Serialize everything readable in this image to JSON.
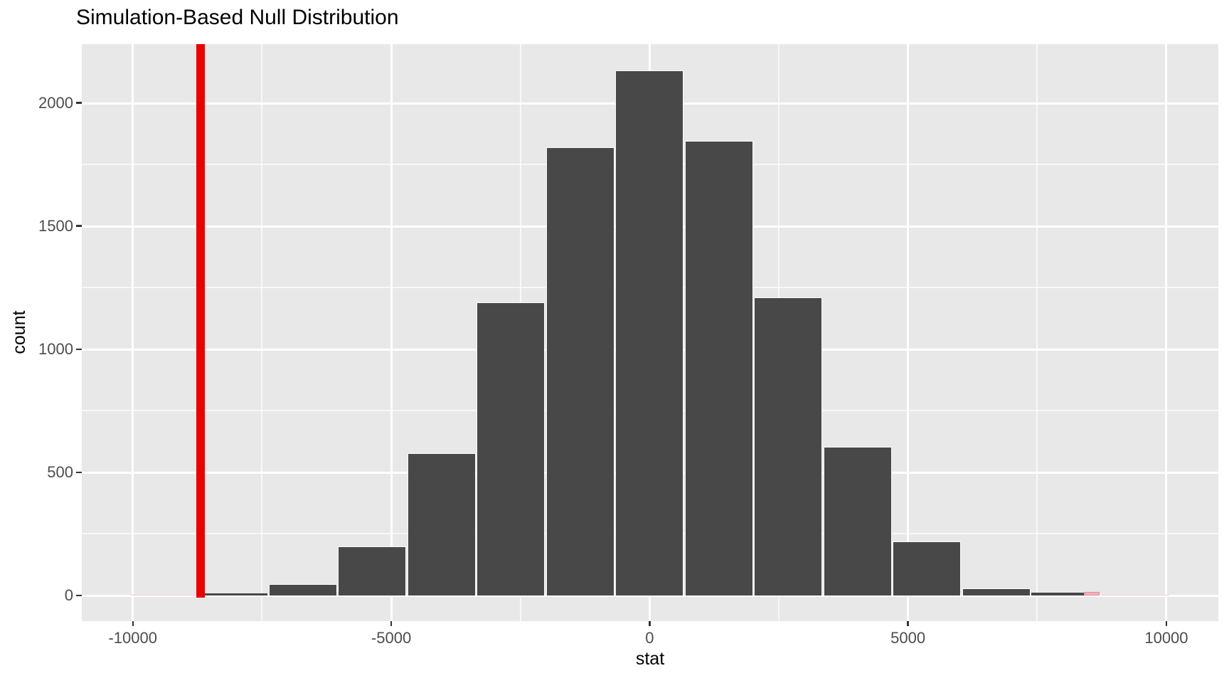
{
  "title": "Simulation-Based Null Distribution",
  "x_axis": {
    "label": "stat",
    "ticks": [
      -10000,
      -5000,
      0,
      5000,
      10000
    ],
    "tick_labels": [
      "-10000",
      "-5000",
      "0",
      "5000",
      "10000"
    ]
  },
  "y_axis": {
    "label": "count",
    "ticks": [
      0,
      500,
      1000,
      1500,
      2000
    ],
    "tick_labels": [
      "0",
      "500",
      "1000",
      "1500",
      "2000"
    ]
  },
  "colors": {
    "panel": "#E8E8E8",
    "grid": "#FFFFFF",
    "bar": "#484848",
    "bar_border": "#FAFAFA",
    "pink_fill": "#EFB0BA",
    "pink_faint": "#F4C9D0",
    "pink_border": "#DB8E9C",
    "observed_line": "#E60300",
    "tick_mark": "#333333",
    "tick_label": "#4D4D4D",
    "text": "#000000"
  },
  "chart_data": {
    "type": "bar",
    "subtype": "histogram",
    "title": "Simulation-Based Null Distribution",
    "xlabel": "stat",
    "ylabel": "count",
    "xlim": [
      -11000,
      11000
    ],
    "ylim": [
      0,
      2240
    ],
    "grid": "on",
    "legend": "none",
    "bin_width": 1342,
    "bin_centers": [
      -9394,
      -8052,
      -6710,
      -5368,
      -4026,
      -2684,
      -1342,
      0,
      1342,
      2684,
      4026,
      5368,
      6710,
      8052,
      9394
    ],
    "counts": [
      4,
      9,
      47,
      198,
      578,
      1190,
      1820,
      2130,
      1845,
      1210,
      605,
      220,
      30,
      11,
      4
    ],
    "bar_colors": [
      "pink",
      "grey",
      "grey",
      "grey",
      "grey",
      "grey",
      "grey",
      "grey",
      "grey",
      "grey",
      "grey",
      "grey",
      "grey",
      "split",
      "pink"
    ],
    "observed_stat": -8690,
    "shade_direction": "two_sided",
    "split_pink_fraction": 0.23
  }
}
